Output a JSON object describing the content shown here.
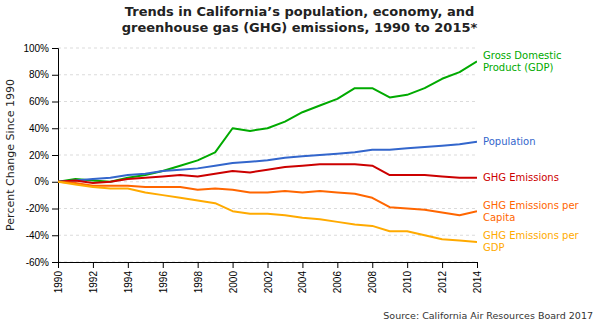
{
  "chart_data": {
    "type": "line",
    "title": "Trends in California’s population, economy, and\ngreenhouse gas (GHG) emissions, 1990 to 2015*",
    "y_label": "Percent Change Since 1990",
    "annotations": [
      {
        "text": "Source: California Air Resources Board 2017"
      }
    ],
    "x": [
      1990,
      1991,
      1992,
      1993,
      1994,
      1995,
      1996,
      1997,
      1998,
      1999,
      2000,
      2001,
      2002,
      2003,
      2004,
      2005,
      2006,
      2007,
      2008,
      2009,
      2010,
      2011,
      2012,
      2013,
      2014
    ],
    "series": [
      {
        "name": "Gross Domestic\nProduct (GDP)",
        "color": "#00AA00",
        "values": [
          0,
          2,
          1,
          0,
          3,
          5,
          8,
          12,
          16,
          22,
          40,
          38,
          40,
          45,
          52,
          57,
          62,
          70,
          70,
          63,
          65,
          70,
          77,
          82,
          90
        ]
      },
      {
        "name": "Population",
        "color": "#3366CC",
        "values": [
          0,
          1,
          2,
          3,
          5,
          6,
          8,
          9,
          10,
          12,
          14,
          15,
          16,
          18,
          19,
          20,
          21,
          22,
          24,
          24,
          25,
          26,
          27,
          28,
          30
        ]
      },
      {
        "name": "GHG Emissions",
        "color": "#CC0000",
        "values": [
          0,
          1,
          -1,
          0,
          2,
          3,
          4,
          5,
          4,
          6,
          8,
          7,
          9,
          11,
          12,
          13,
          13,
          13,
          12,
          5,
          5,
          5,
          4,
          3,
          3
        ]
      },
      {
        "name": "GHG Emissions per\nCapita",
        "color": "#FF6600",
        "values": [
          0,
          -1,
          -3,
          -3,
          -3,
          -4,
          -4,
          -4,
          -6,
          -5,
          -6,
          -8,
          -8,
          -7,
          -8,
          -7,
          -8,
          -9,
          -12,
          -19,
          -20,
          -21,
          -23,
          -25,
          -22
        ]
      },
      {
        "name": "GHG Emissions per\nGDP",
        "color": "#FFAA00",
        "values": [
          0,
          -2,
          -4,
          -5,
          -5,
          -8,
          -10,
          -12,
          -14,
          -16,
          -22,
          -24,
          -24,
          -25,
          -27,
          -28,
          -30,
          -32,
          -33,
          -37,
          -37,
          -40,
          -43,
          -44,
          -45
        ]
      }
    ],
    "xlim": [
      1990,
      2014
    ],
    "xticks": [
      1990,
      1992,
      1994,
      1996,
      1998,
      2000,
      2002,
      2004,
      2006,
      2008,
      2010,
      2012,
      2014
    ],
    "ylim": [
      -60,
      100
    ],
    "yticks": [
      {
        "value": -60,
        "label": "-60%"
      },
      {
        "value": -40,
        "label": "-40%"
      },
      {
        "value": -20,
        "label": "-20%"
      },
      {
        "value": 0,
        "label": "0%"
      },
      {
        "value": 20,
        "label": "20%"
      },
      {
        "value": 40,
        "label": "40%"
      },
      {
        "value": 60,
        "label": "60%"
      },
      {
        "value": 80,
        "label": "80%"
      },
      {
        "value": 100,
        "label": "100%"
      }
    ],
    "grid": true
  }
}
